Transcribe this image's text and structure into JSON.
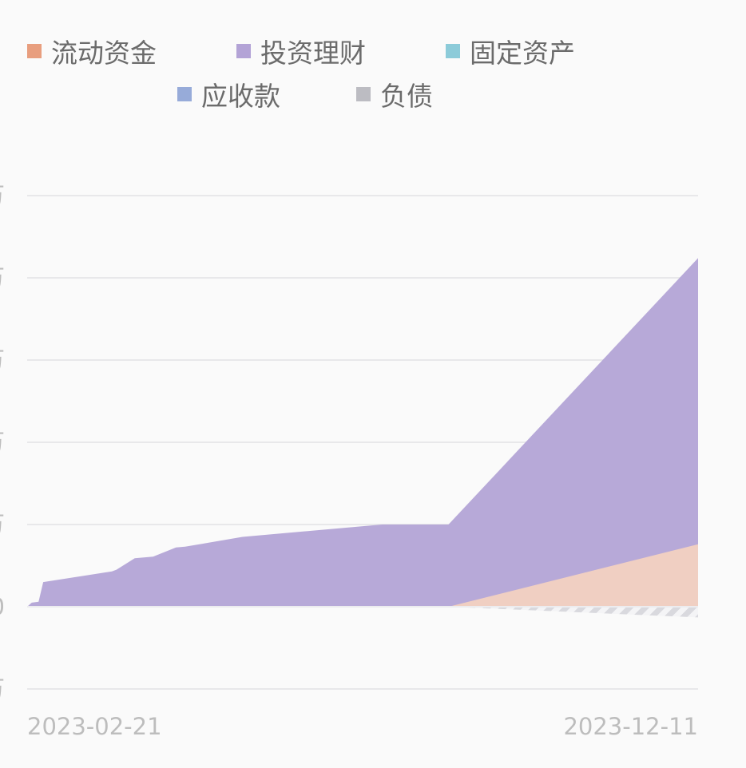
{
  "legend": {
    "items": [
      {
        "label": "流动资金",
        "color": "#e89e7e"
      },
      {
        "label": "投资理财",
        "color": "#b3a3d6"
      },
      {
        "label": "固定资产",
        "color": "#8ccbd9"
      },
      {
        "label": "应收款",
        "color": "#97abd9"
      },
      {
        "label": "负债",
        "color": "#bcbcc2"
      }
    ]
  },
  "chart_data": {
    "type": "area",
    "stacked": true,
    "x_labels": [
      "2023-02-21",
      "2023-12-11"
    ],
    "x_range": [
      "2023-02-21",
      "2023-12-11"
    ],
    "y_range": [
      -1,
      5
    ],
    "y_tick_label_visible_fragment": "万",
    "y_zero_label": "0",
    "grid": true,
    "legend_position": "top",
    "series": [
      {
        "name": "流动资金",
        "color": "#f0cfc2",
        "x": [
          "2023-02-21",
          "2023-08-24",
          "2023-12-11"
        ],
        "values": [
          0,
          0,
          0.76
        ]
      },
      {
        "name": "投资理财",
        "color": "#b7a9d8",
        "x": [
          "2023-02-21",
          "2023-02-23",
          "2023-02-26",
          "2023-02-28",
          "2023-03-30",
          "2023-04-01",
          "2023-04-09",
          "2023-04-17",
          "2023-04-27",
          "2023-05-01",
          "2023-05-26",
          "2023-07-26",
          "2023-08-24",
          "2023-12-11"
        ],
        "values": [
          0,
          0.05,
          0.06,
          0.3,
          0.43,
          0.45,
          0.59,
          0.61,
          0.72,
          0.73,
          0.85,
          1.0,
          1.0,
          4.24
        ]
      },
      {
        "name": "负债",
        "color": "#dcdce2",
        "x": [
          "2023-02-21",
          "2023-08-24",
          "2023-12-11"
        ],
        "values": [
          0,
          0,
          -0.13
        ]
      }
    ]
  }
}
